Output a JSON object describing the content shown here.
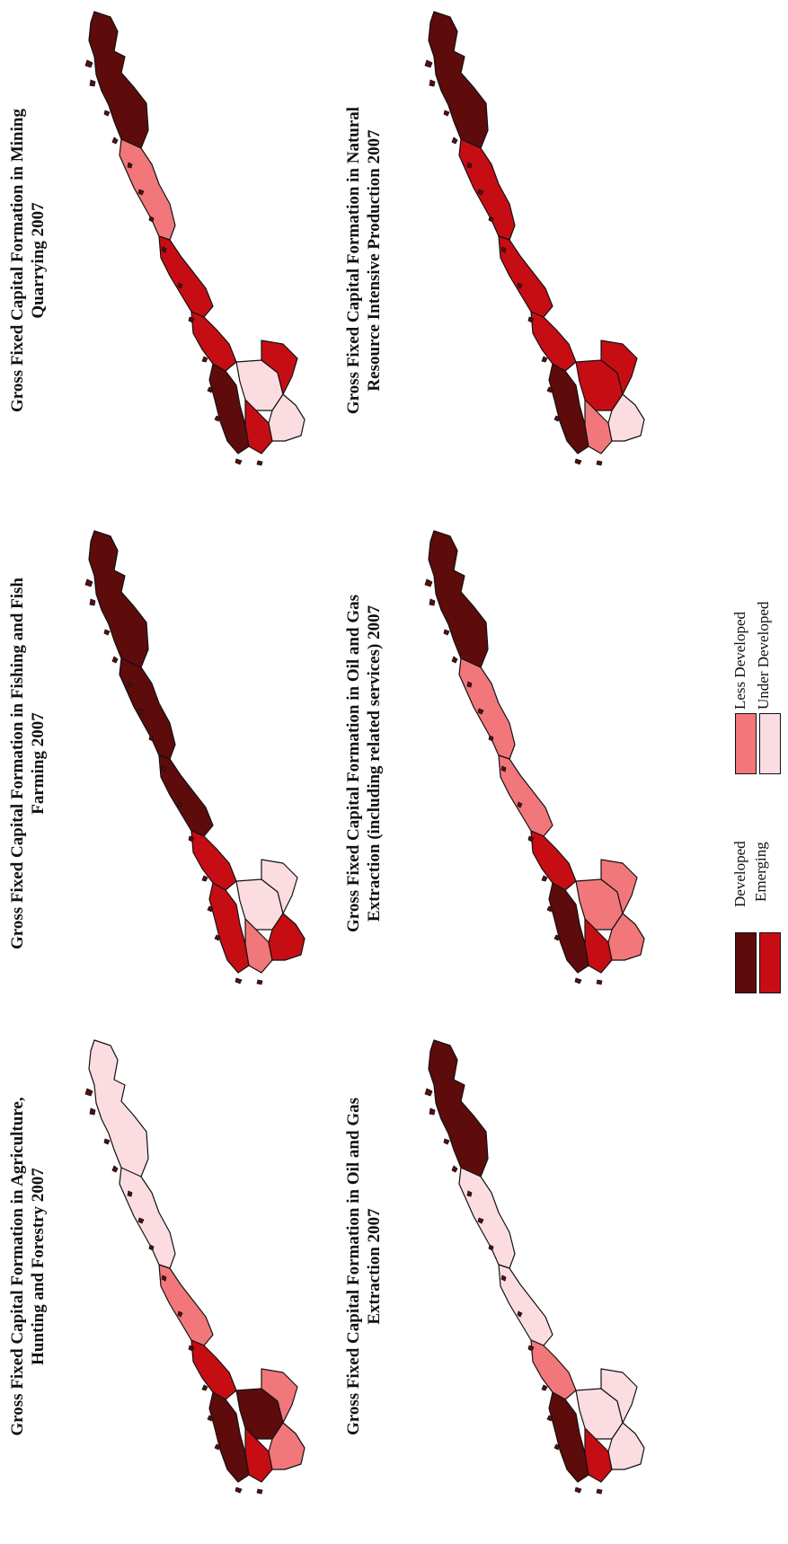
{
  "colors": {
    "developed": "#5e0b0c",
    "emerging": "#c70d14",
    "less_developed": "#f2777a",
    "under_developed": "#fbdde1",
    "outline": "#111111"
  },
  "maps": [
    {
      "title_lines": [
        "Gross Fixed Capital Formation in Agriculture,",
        "Hunting and Forestry  2007"
      ],
      "classes": {
        "north": "under_developed",
        "mid_north": "under_developed",
        "mid": "less_developed",
        "west": "emerging",
        "southwest": "developed",
        "interior": "developed",
        "east": "less_developed",
        "south": "emerging",
        "southeast": "less_developed"
      }
    },
    {
      "title_lines": [
        "Gross Fixed Capital Formation in Fishing and Fish",
        "Farming  2007"
      ],
      "classes": {
        "north": "developed",
        "mid_north": "developed",
        "mid": "developed",
        "west": "emerging",
        "southwest": "emerging",
        "interior": "under_developed",
        "east": "under_developed",
        "south": "less_developed",
        "southeast": "emerging"
      }
    },
    {
      "title_lines": [
        "Gross Fixed Capital Formation in Mining",
        "Quarrying 2007"
      ],
      "classes": {
        "north": "developed",
        "mid_north": "less_developed",
        "mid": "emerging",
        "west": "emerging",
        "southwest": "developed",
        "interior": "under_developed",
        "east": "emerging",
        "south": "emerging",
        "southeast": "under_developed"
      }
    },
    {
      "title_lines": [
        "Gross Fixed Capital Formation in Oil and Gas",
        "Extraction 2007"
      ],
      "classes": {
        "north": "developed",
        "mid_north": "under_developed",
        "mid": "under_developed",
        "west": "less_developed",
        "southwest": "developed",
        "interior": "under_developed",
        "east": "under_developed",
        "south": "emerging",
        "southeast": "under_developed"
      }
    },
    {
      "title_lines": [
        "Gross Fixed Capital Formation in Oil and Gas",
        "Extraction (including  related services) 2007"
      ],
      "classes": {
        "north": "developed",
        "mid_north": "less_developed",
        "mid": "less_developed",
        "west": "emerging",
        "southwest": "developed",
        "interior": "less_developed",
        "east": "less_developed",
        "south": "emerging",
        "southeast": "less_developed"
      }
    },
    {
      "title_lines": [
        "Gross Fixed Capital Formation in Natural",
        "Resource Intensive Production 2007"
      ],
      "classes": {
        "north": "developed",
        "mid_north": "emerging",
        "mid": "emerging",
        "west": "emerging",
        "southwest": "developed",
        "interior": "emerging",
        "east": "emerging",
        "south": "less_developed",
        "southeast": "under_developed"
      }
    }
  ],
  "legend": {
    "items": [
      {
        "key": "developed",
        "label": "Developed"
      },
      {
        "key": "emerging",
        "label": "Emerging"
      },
      {
        "key": "less_developed",
        "label": "Less Developed"
      },
      {
        "key": "under_developed",
        "label": "Under Developed"
      }
    ]
  }
}
